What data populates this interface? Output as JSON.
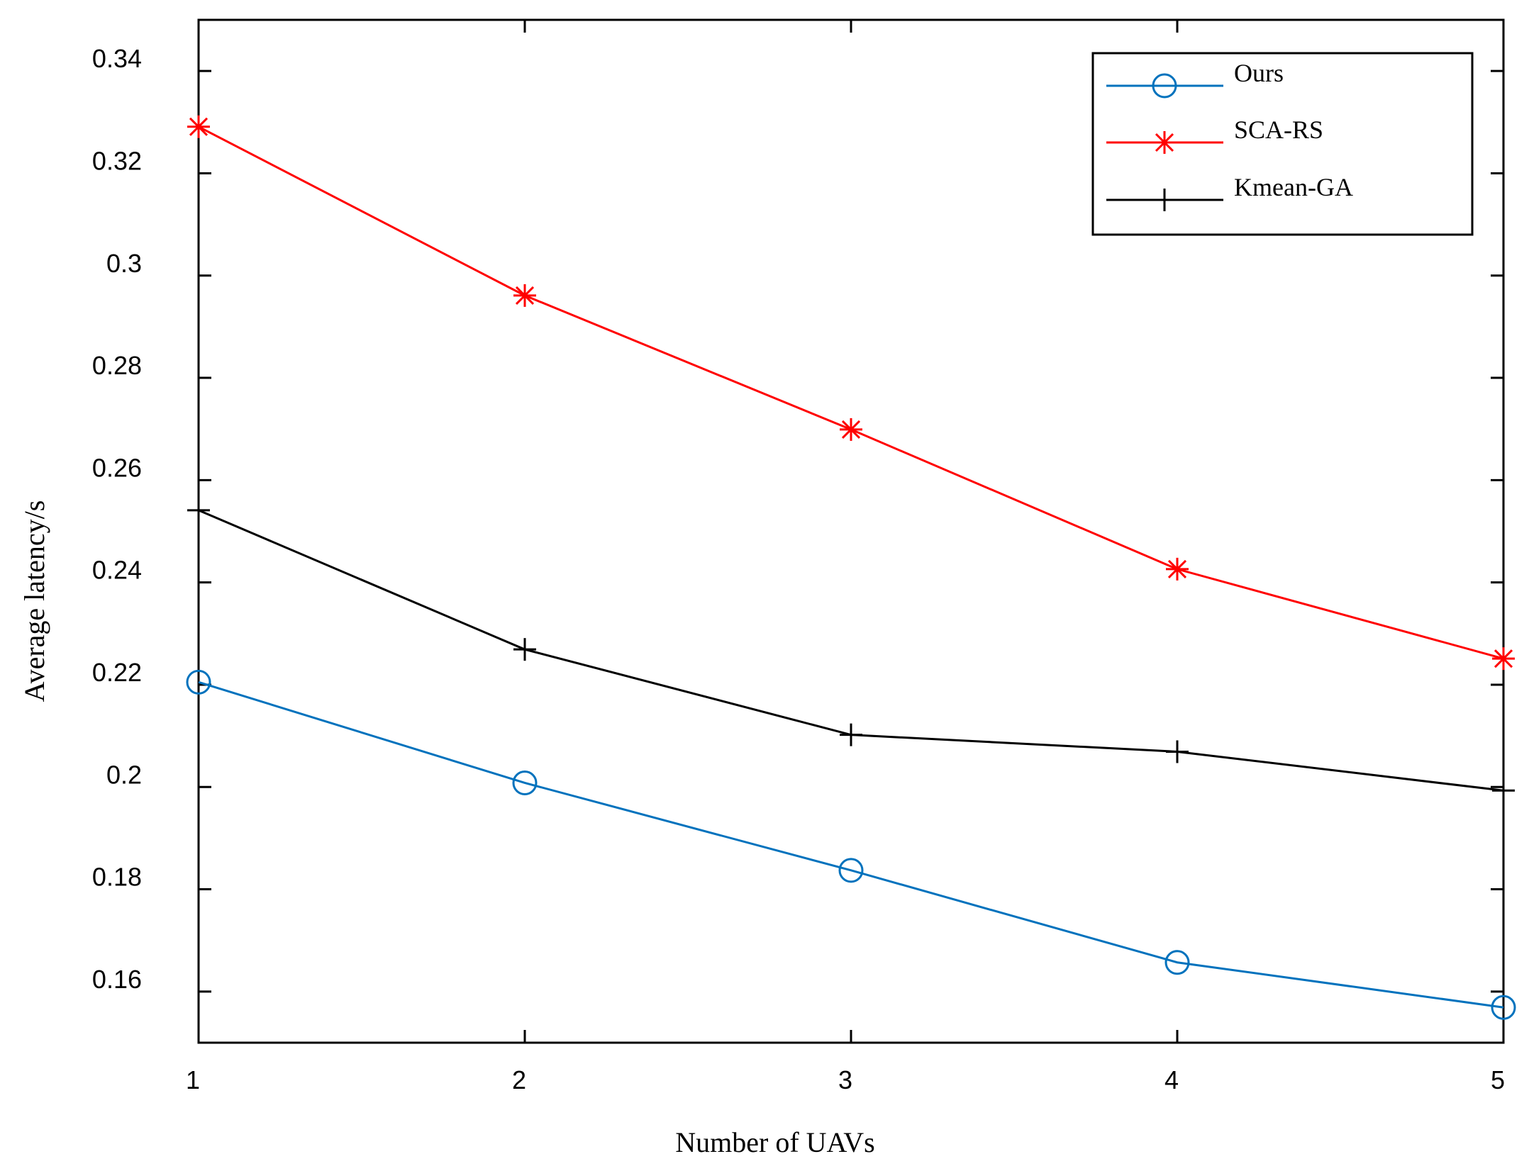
{
  "chart_data": {
    "type": "line",
    "title": "",
    "xlabel": "Number of UAVs",
    "ylabel": "Average latency/s",
    "x": [
      1,
      2,
      3,
      4,
      5
    ],
    "xlim": [
      1,
      5
    ],
    "ylim": [
      0.15,
      0.35
    ],
    "xticks": [
      1,
      2,
      3,
      4,
      5
    ],
    "xtick_labels": [
      "1",
      "2",
      "3",
      "4",
      "5"
    ],
    "yticks": [
      0.16,
      0.18,
      0.2,
      0.22,
      0.24,
      0.26,
      0.28,
      0.3,
      0.32,
      0.34
    ],
    "ytick_labels": [
      "0.16",
      "0.18",
      "0.2",
      "0.22",
      "0.24",
      "0.26",
      "0.28",
      "0.3",
      "0.32",
      "0.34"
    ],
    "grid": false,
    "legend_position": "top-right",
    "series": [
      {
        "name": "Ours",
        "color": "#0072BD",
        "marker": "circle",
        "values": [
          0.2205,
          0.2008,
          0.1837,
          0.1657,
          0.1569
        ]
      },
      {
        "name": "SCA-RS",
        "color": "#FF0000",
        "marker": "asterisk",
        "values": [
          0.3291,
          0.2961,
          0.2699,
          0.2426,
          0.2251
        ]
      },
      {
        "name": "Kmean-GA",
        "color": "#000000",
        "marker": "plus",
        "values": [
          0.2541,
          0.2269,
          0.2102,
          0.2069,
          0.1993
        ]
      }
    ]
  }
}
